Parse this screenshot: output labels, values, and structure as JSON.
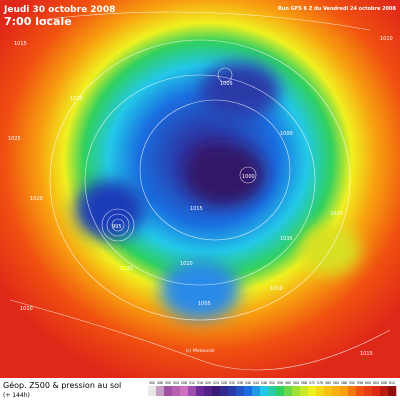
{
  "header": {
    "date": "Jeudi 30 octobre 2008",
    "time": "7:00 locale",
    "run": "Run GFS 6 Z du Vendredi 24 octobre 2008"
  },
  "footer": {
    "title": "Géop. Z500 & pression au sol",
    "lead": "(+ 144h)"
  },
  "credit": "(c) Meteociel",
  "isobars": [
    "1015",
    "1010",
    "1025",
    "1020",
    "1005",
    "1000",
    "995",
    "1010",
    "1015",
    "1020",
    "1035",
    "1025",
    "1010",
    "1015",
    "1020",
    "1005",
    "1010",
    "1000"
  ],
  "scale": [
    "492",
    "496",
    "500",
    "504",
    "508",
    "512",
    "516",
    "520",
    "524",
    "528",
    "532",
    "536",
    "540",
    "544",
    "548",
    "552",
    "556",
    "560",
    "564",
    "568",
    "572",
    "576",
    "580",
    "584",
    "588",
    "592",
    "596",
    "600",
    "604",
    "608",
    "612"
  ]
}
